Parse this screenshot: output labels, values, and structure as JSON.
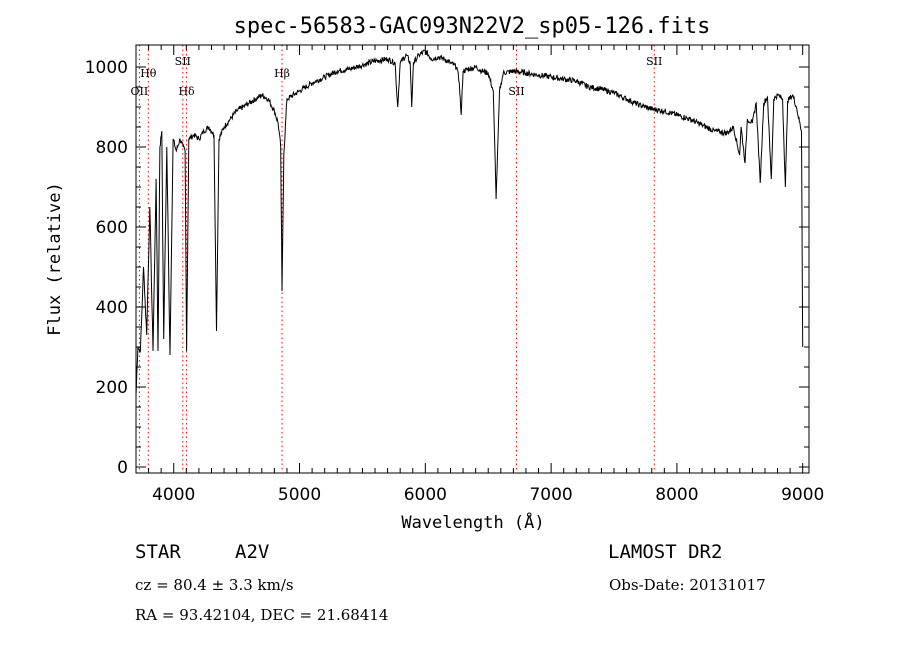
{
  "chart_data": {
    "type": "line",
    "title": "spec-56583-GAC093N22V2_sp05-126.fits",
    "xlabel": "Wavelength (Å)",
    "ylabel": "Flux (relative)",
    "xlim": [
      3700,
      9050
    ],
    "ylim": [
      -15,
      1055
    ],
    "x_ticks": [
      4000,
      5000,
      6000,
      7000,
      8000,
      9000
    ],
    "y_ticks": [
      0,
      200,
      400,
      600,
      800,
      1000
    ],
    "grid": false,
    "line_color": "#000000",
    "marker_color": "#ff0000",
    "spectrum_anchors": [
      [
        3700,
        180
      ],
      [
        3715,
        300
      ],
      [
        3735,
        290
      ],
      [
        3760,
        500
      ],
      [
        3785,
        330
      ],
      [
        3810,
        650
      ],
      [
        3835,
        290
      ],
      [
        3860,
        720
      ],
      [
        3875,
        290
      ],
      [
        3890,
        800
      ],
      [
        3905,
        840
      ],
      [
        3920,
        320
      ],
      [
        3945,
        800
      ],
      [
        3970,
        280
      ],
      [
        3995,
        820
      ],
      [
        4020,
        790
      ],
      [
        4050,
        820
      ],
      [
        4075,
        800
      ],
      [
        4090,
        790
      ],
      [
        4102,
        290
      ],
      [
        4120,
        820
      ],
      [
        4160,
        830
      ],
      [
        4200,
        820
      ],
      [
        4240,
        840
      ],
      [
        4280,
        850
      ],
      [
        4320,
        830
      ],
      [
        4340,
        340
      ],
      [
        4360,
        820
      ],
      [
        4400,
        850
      ],
      [
        4450,
        870
      ],
      [
        4500,
        890
      ],
      [
        4550,
        900
      ],
      [
        4600,
        910
      ],
      [
        4650,
        920
      ],
      [
        4700,
        930
      ],
      [
        4750,
        920
      ],
      [
        4800,
        890
      ],
      [
        4830,
        860
      ],
      [
        4850,
        800
      ],
      [
        4861,
        440
      ],
      [
        4875,
        780
      ],
      [
        4900,
        920
      ],
      [
        5000,
        940
      ],
      [
        5100,
        960
      ],
      [
        5200,
        975
      ],
      [
        5300,
        990
      ],
      [
        5400,
        995
      ],
      [
        5500,
        1005
      ],
      [
        5600,
        1015
      ],
      [
        5700,
        1020
      ],
      [
        5760,
        1010
      ],
      [
        5780,
        900
      ],
      [
        5800,
        1010
      ],
      [
        5850,
        1030
      ],
      [
        5880,
        1010
      ],
      [
        5892,
        900
      ],
      [
        5905,
        1010
      ],
      [
        5950,
        1030
      ],
      [
        6000,
        1040
      ],
      [
        6050,
        1020
      ],
      [
        6100,
        1025
      ],
      [
        6150,
        1020
      ],
      [
        6200,
        1010
      ],
      [
        6250,
        1000
      ],
      [
        6270,
        960
      ],
      [
        6285,
        880
      ],
      [
        6300,
        990
      ],
      [
        6350,
        995
      ],
      [
        6400,
        1000
      ],
      [
        6450,
        990
      ],
      [
        6500,
        985
      ],
      [
        6540,
        940
      ],
      [
        6563,
        670
      ],
      [
        6590,
        940
      ],
      [
        6620,
        985
      ],
      [
        6700,
        990
      ],
      [
        6800,
        985
      ],
      [
        6900,
        980
      ],
      [
        7000,
        975
      ],
      [
        7100,
        970
      ],
      [
        7200,
        965
      ],
      [
        7300,
        950
      ],
      [
        7400,
        945
      ],
      [
        7500,
        935
      ],
      [
        7600,
        920
      ],
      [
        7700,
        905
      ],
      [
        7800,
        895
      ],
      [
        7900,
        890
      ],
      [
        8000,
        880
      ],
      [
        8100,
        870
      ],
      [
        8200,
        855
      ],
      [
        8300,
        840
      ],
      [
        8400,
        835
      ],
      [
        8450,
        850
      ],
      [
        8498,
        780
      ],
      [
        8510,
        850
      ],
      [
        8542,
        760
      ],
      [
        8560,
        870
      ],
      [
        8600,
        860
      ],
      [
        8630,
        910
      ],
      [
        8662,
        710
      ],
      [
        8690,
        910
      ],
      [
        8720,
        925
      ],
      [
        8750,
        720
      ],
      [
        8770,
        920
      ],
      [
        8800,
        930
      ],
      [
        8840,
        920
      ],
      [
        8862,
        700
      ],
      [
        8880,
        915
      ],
      [
        8920,
        930
      ],
      [
        8950,
        900
      ],
      [
        8990,
        840
      ],
      [
        9000,
        300
      ]
    ],
    "marker_lines": [
      {
        "x": 3727,
        "label": "OII",
        "label_y": 930
      },
      {
        "x": 3798,
        "label": "Hθ",
        "label_y": 975
      },
      {
        "x": 4072,
        "label": "SII",
        "label_y": 1005
      },
      {
        "x": 4102,
        "label": "Hδ",
        "label_y": 930
      },
      {
        "x": 4861,
        "label": "Hβ",
        "label_y": 975
      },
      {
        "x": 6725,
        "label": "SII",
        "label_y": 930
      },
      {
        "x": 7820,
        "label": "SII",
        "label_y": 1005
      }
    ]
  },
  "info": {
    "object_class": "STAR",
    "subclass": "A2V",
    "survey": "LAMOST DR2",
    "cz": "cz = 80.4 ± 3.3 km/s",
    "obs_date": "Obs-Date: 20131017",
    "coords": "RA =  93.42104, DEC =  21.68414"
  }
}
